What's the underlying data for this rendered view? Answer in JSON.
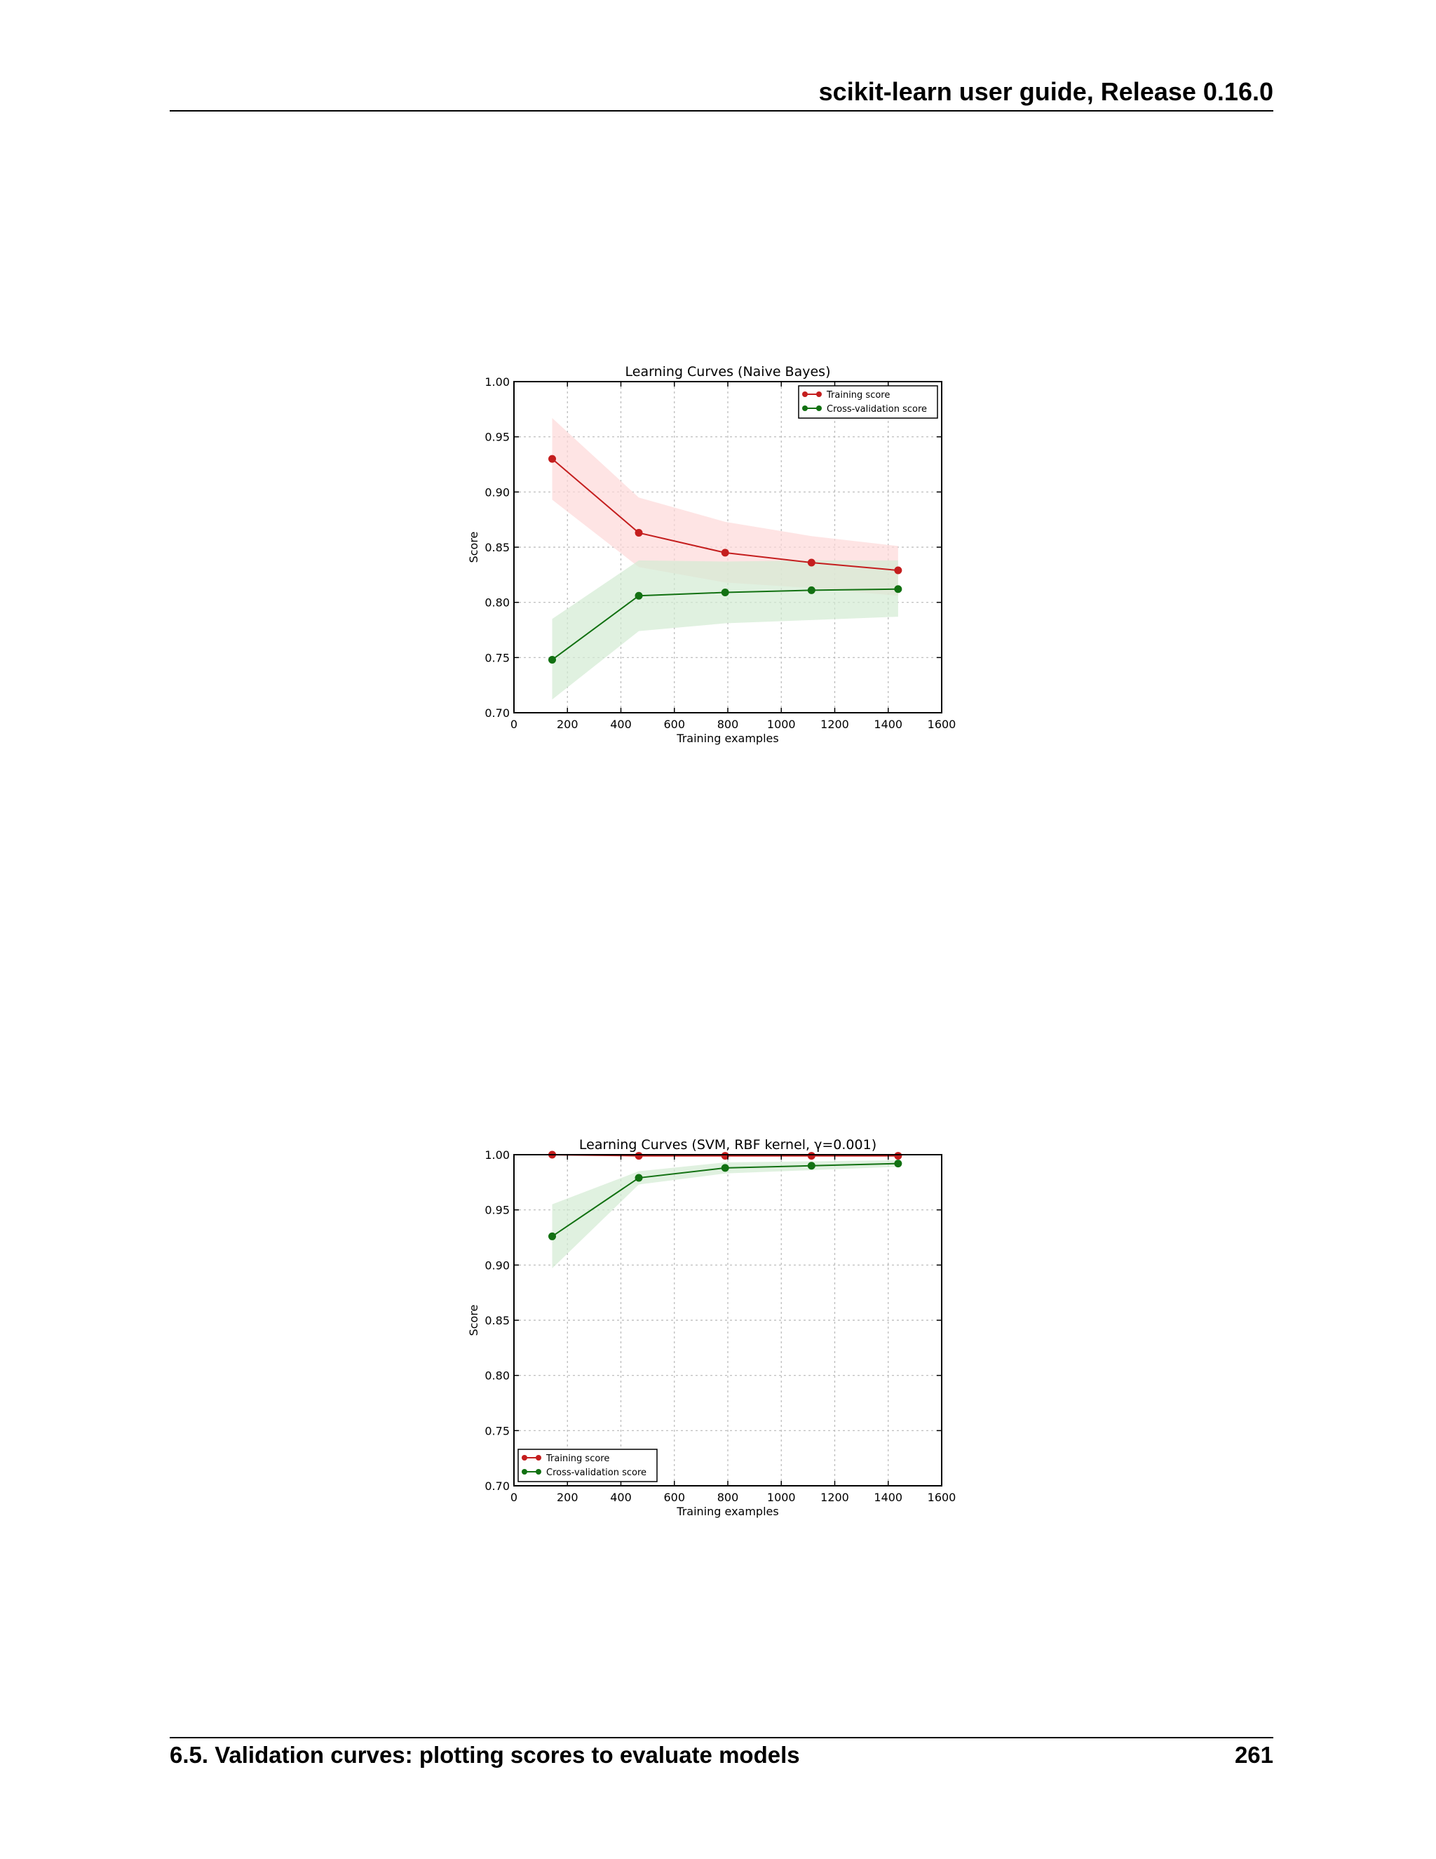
{
  "header": {
    "running_title": "scikit-learn user guide, Release 0.16.0"
  },
  "footer": {
    "section": "6.5.  Validation curves: plotting scores to evaluate models",
    "page_number": "261"
  },
  "colors": {
    "training": "#c41e1e",
    "cv": "#127112",
    "training_band": "#fdd8d8",
    "cv_band": "#d3ebd3"
  },
  "chart_data": [
    {
      "type": "line",
      "title": "Learning Curves (Naive Bayes)",
      "xlabel": "Training examples",
      "ylabel": "Score",
      "xlim": [
        0,
        1600
      ],
      "ylim": [
        0.7,
        1.0
      ],
      "xticks": [
        "0",
        "200",
        "400",
        "600",
        "800",
        "1000",
        "1200",
        "1400",
        "1600"
      ],
      "yticks": [
        "0.70",
        "0.75",
        "0.80",
        "0.85",
        "0.90",
        "0.95",
        "1.00"
      ],
      "grid": true,
      "legend_position": "top-right",
      "x": [
        143,
        467,
        790,
        1113,
        1437
      ],
      "series": [
        {
          "name": "Training score",
          "values": [
            0.93,
            0.863,
            0.845,
            0.836,
            0.829
          ],
          "band_low": [
            0.893,
            0.832,
            0.818,
            0.813,
            0.806
          ],
          "band_high": [
            0.967,
            0.895,
            0.873,
            0.86,
            0.851
          ]
        },
        {
          "name": "Cross-validation score",
          "values": [
            0.748,
            0.806,
            0.809,
            0.811,
            0.812
          ],
          "band_low": [
            0.712,
            0.774,
            0.781,
            0.784,
            0.787
          ],
          "band_high": [
            0.785,
            0.838,
            0.837,
            0.838,
            0.838
          ]
        }
      ]
    },
    {
      "type": "line",
      "title": "Learning Curves (SVM, RBF kernel, γ=0.001)",
      "xlabel": "Training examples",
      "ylabel": "Score",
      "xlim": [
        0,
        1600
      ],
      "ylim": [
        0.7,
        1.0
      ],
      "xticks": [
        "0",
        "200",
        "400",
        "600",
        "800",
        "1000",
        "1200",
        "1400",
        "1600"
      ],
      "yticks": [
        "0.70",
        "0.75",
        "0.80",
        "0.85",
        "0.90",
        "0.95",
        "1.00"
      ],
      "grid": true,
      "legend_position": "bottom-left",
      "x": [
        143,
        467,
        790,
        1113,
        1437
      ],
      "series": [
        {
          "name": "Training score",
          "values": [
            1.0,
            0.999,
            0.999,
            0.999,
            0.999
          ],
          "band_low": [
            0.999,
            0.998,
            0.998,
            0.998,
            0.998
          ],
          "band_high": [
            1.0,
            1.0,
            1.0,
            1.0,
            1.0
          ]
        },
        {
          "name": "Cross-validation score",
          "values": [
            0.926,
            0.979,
            0.988,
            0.99,
            0.992
          ],
          "band_low": [
            0.897,
            0.973,
            0.983,
            0.986,
            0.989
          ],
          "band_high": [
            0.955,
            0.985,
            0.993,
            0.994,
            0.995
          ]
        }
      ]
    }
  ]
}
